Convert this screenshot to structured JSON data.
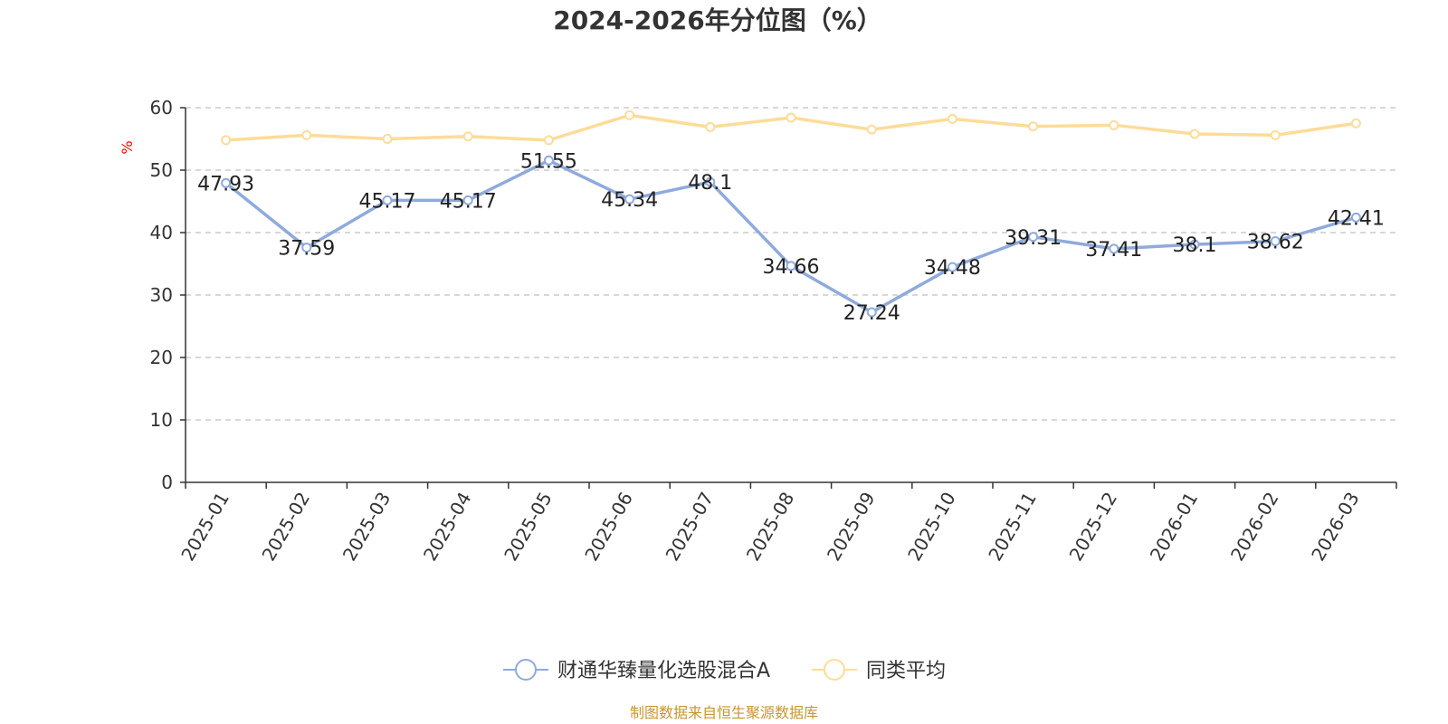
{
  "chart_data": {
    "type": "line",
    "title": "2024-2026年分位图（%）",
    "ylabel": "%",
    "ylim": [
      0,
      60
    ],
    "yticks": [
      0,
      10,
      20,
      30,
      40,
      50,
      60
    ],
    "grid": true,
    "legend_position": "bottom-center",
    "categories": [
      "2025-01",
      "2025-02",
      "2025-03",
      "2025-04",
      "2025-05",
      "2025-06",
      "2025-07",
      "2025-08",
      "2025-09",
      "2025-10",
      "2025-11",
      "2025-12",
      "2026-01",
      "2026-02",
      "2026-03"
    ],
    "series": [
      {
        "name": "财通华臻量化选股混合A",
        "color": "#8faadc",
        "show_labels": true,
        "values": [
          47.93,
          37.59,
          45.17,
          45.17,
          51.55,
          45.34,
          48.1,
          34.66,
          27.24,
          34.48,
          39.31,
          37.41,
          38.1,
          38.62,
          42.41
        ]
      },
      {
        "name": "同类平均",
        "color": "#fddc99",
        "show_labels": false,
        "values": [
          54.8,
          55.6,
          55.0,
          55.4,
          54.8,
          58.8,
          56.9,
          58.4,
          56.5,
          58.2,
          57.0,
          57.2,
          55.8,
          55.6,
          57.5
        ]
      }
    ]
  },
  "source_text": "制图数据来自恒生聚源数据库",
  "colors": {
    "axis": "#333333",
    "grid": "#cccccc",
    "ylabel": "#ff0000",
    "source": "#c8962e"
  }
}
